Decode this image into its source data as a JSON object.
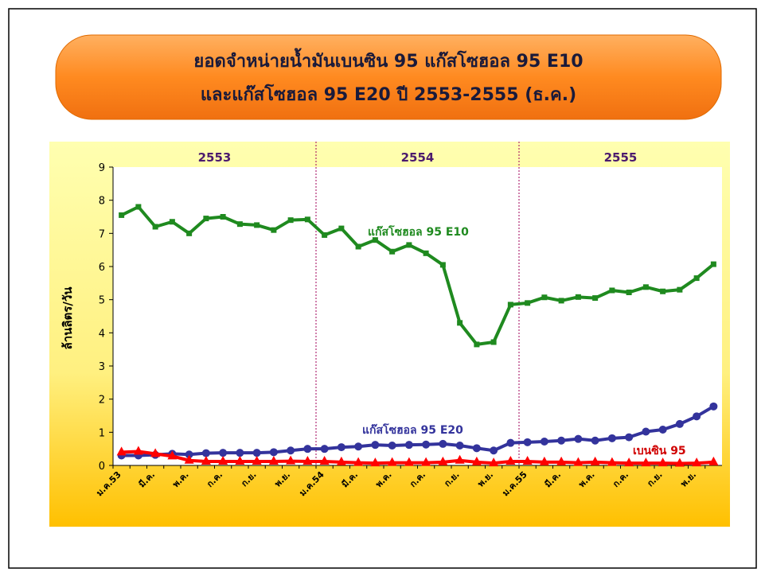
{
  "chart_data": {
    "type": "line",
    "title": [
      "ยอดจำหน่ายน้ำมันเบนซิน 95 แก๊สโซฮอล 95 E10",
      "และแก๊สโซฮอล 95 E20  ปี 2553-2555 (ธ.ค.)"
    ],
    "y_label": "ล้านลิตร/วัน",
    "year_labels": [
      "2553",
      "2554",
      "2555"
    ],
    "categories": [
      "ม.ค.53",
      null,
      "มี.ค.",
      null,
      "พ.ค.",
      null,
      "ก.ค.",
      null,
      "ก.ย.",
      null,
      "พ.ย.",
      null,
      "ม.ค.54",
      null,
      "มี.ค.",
      null,
      "พ.ค.",
      null,
      "ก.ค.",
      null,
      "ก.ย.",
      null,
      "พ.ย.",
      null,
      "ม.ค.55",
      null,
      "มี.ค.",
      null,
      "พ.ค.",
      null,
      "ก.ค.",
      null,
      "ก.ย.",
      null,
      "พ.ย.",
      null
    ],
    "series": [
      {
        "name": "แก๊สโซฮอล 95 E10",
        "color": "#1f8a1f",
        "marker": "square",
        "values": [
          7.55,
          7.8,
          7.2,
          7.35,
          7.0,
          7.45,
          7.5,
          7.28,
          7.25,
          7.1,
          7.4,
          7.42,
          6.95,
          7.15,
          6.6,
          6.8,
          6.45,
          6.65,
          6.4,
          6.05,
          4.3,
          3.65,
          3.72,
          4.85,
          4.9,
          5.07,
          4.97,
          5.08,
          5.05,
          5.28,
          5.22,
          5.38,
          5.25,
          5.3,
          5.65,
          6.07
        ]
      },
      {
        "name": "แก๊สโซฮอล 95 E20",
        "color": "#33339c",
        "marker": "circle",
        "values": [
          0.3,
          0.3,
          0.32,
          0.35,
          0.33,
          0.37,
          0.38,
          0.38,
          0.38,
          0.4,
          0.45,
          0.5,
          0.5,
          0.55,
          0.57,
          0.62,
          0.6,
          0.62,
          0.63,
          0.65,
          0.6,
          0.52,
          0.45,
          0.68,
          0.7,
          0.72,
          0.75,
          0.8,
          0.75,
          0.82,
          0.85,
          1.02,
          1.08,
          1.25,
          1.48,
          1.78
        ]
      },
      {
        "name": "เบนซิน 95",
        "color": "#ff0000",
        "marker": "triangle",
        "values": [
          0.4,
          0.42,
          0.35,
          0.28,
          0.15,
          0.12,
          0.12,
          0.12,
          0.12,
          0.12,
          0.13,
          0.12,
          0.12,
          0.1,
          0.08,
          0.07,
          0.08,
          0.08,
          0.08,
          0.1,
          0.15,
          0.1,
          0.07,
          0.12,
          0.12,
          0.1,
          0.1,
          0.08,
          0.1,
          0.08,
          0.07,
          0.07,
          0.07,
          0.06,
          0.07,
          0.1
        ]
      }
    ],
    "ylim": [
      0,
      9
    ],
    "yticks": [
      0,
      1,
      2,
      3,
      4,
      5,
      6,
      7,
      8,
      9
    ],
    "grid": false
  }
}
